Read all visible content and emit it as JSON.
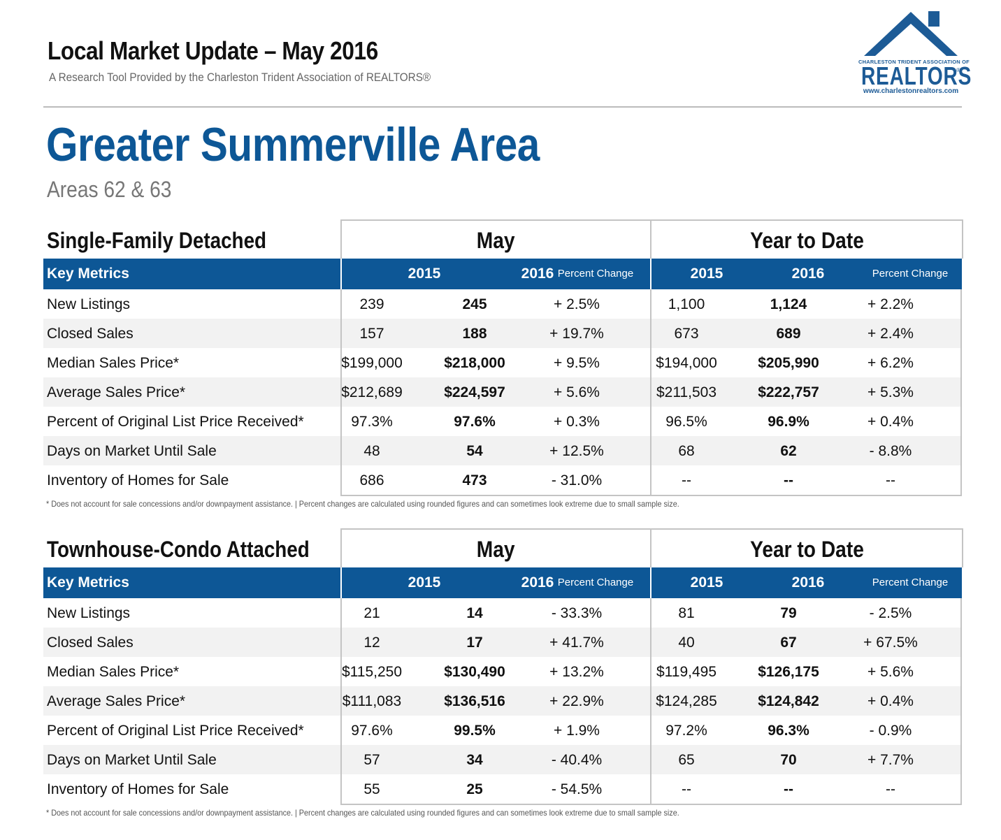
{
  "header": {
    "title": "Local Market Update – May 2016",
    "subtitle": "A Research Tool Provided by the Charleston Trident Association of REALTORS®"
  },
  "logo": {
    "association": "CHARLESTON TRIDENT ASSOCIATION OF",
    "wordmark": "REALTORS",
    "reg": "®",
    "url": "www.charlestonrealtors.com",
    "color": "#1d5b96"
  },
  "area": {
    "title": "Greater Summerville Area",
    "subtitle": "Areas 62 & 63"
  },
  "colors": {
    "accent": "#0d5796",
    "row_alt": "#f2f2f2"
  },
  "columns": {
    "key": "Key Metrics",
    "y2015": "2015",
    "y2016": "2016",
    "pct": "Percent Change",
    "may": "May",
    "ytd": "Year to Date"
  },
  "note": "* Does not account for sale concessions and/or downpayment assistance.  |  Percent changes are calculated using rounded figures and can sometimes look extreme due to small sample size.",
  "sections": [
    {
      "title": "Single-Family Detached",
      "rows": [
        [
          "New Listings",
          "239",
          "245",
          "+ 2.5%",
          "1,100",
          "1,124",
          "+ 2.2%"
        ],
        [
          "Closed Sales",
          "157",
          "188",
          "+ 19.7%",
          "673",
          "689",
          "+ 2.4%"
        ],
        [
          "Median Sales Price*",
          "$199,000",
          "$218,000",
          "+ 9.5%",
          "$194,000",
          "$205,990",
          "+ 6.2%"
        ],
        [
          "Average Sales Price*",
          "$212,689",
          "$224,597",
          "+ 5.6%",
          "$211,503",
          "$222,757",
          "+ 5.3%"
        ],
        [
          "Percent of Original List Price Received*",
          "97.3%",
          "97.6%",
          "+ 0.3%",
          "96.5%",
          "96.9%",
          "+ 0.4%"
        ],
        [
          "Days on Market Until Sale",
          "48",
          "54",
          "+ 12.5%",
          "68",
          "62",
          "- 8.8%"
        ],
        [
          "Inventory of Homes for Sale",
          "686",
          "473",
          "- 31.0%",
          "--",
          "--",
          "--"
        ]
      ]
    },
    {
      "title": "Townhouse-Condo Attached",
      "rows": [
        [
          "New Listings",
          "21",
          "14",
          "- 33.3%",
          "81",
          "79",
          "- 2.5%"
        ],
        [
          "Closed Sales",
          "12",
          "17",
          "+ 41.7%",
          "40",
          "67",
          "+ 67.5%"
        ],
        [
          "Median Sales Price*",
          "$115,250",
          "$130,490",
          "+ 13.2%",
          "$119,495",
          "$126,175",
          "+ 5.6%"
        ],
        [
          "Average Sales Price*",
          "$111,083",
          "$136,516",
          "+ 22.9%",
          "$124,285",
          "$124,842",
          "+ 0.4%"
        ],
        [
          "Percent of Original List Price Received*",
          "97.6%",
          "99.5%",
          "+ 1.9%",
          "97.2%",
          "96.3%",
          "- 0.9%"
        ],
        [
          "Days on Market Until Sale",
          "57",
          "34",
          "- 40.4%",
          "65",
          "70",
          "+ 7.7%"
        ],
        [
          "Inventory of Homes for Sale",
          "55",
          "25",
          "- 54.5%",
          "--",
          "--",
          "--"
        ]
      ]
    }
  ]
}
